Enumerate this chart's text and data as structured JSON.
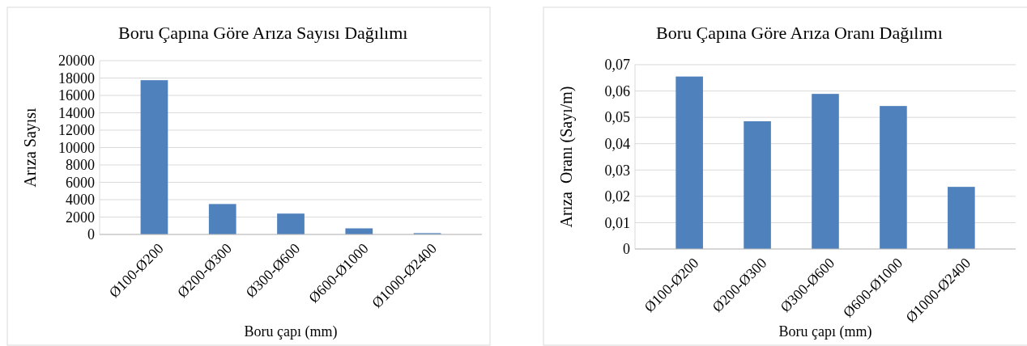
{
  "chart_data": [
    {
      "type": "bar",
      "title": "Boru Çapına Göre Arıza Sayısı Dağılımı",
      "xlabel": "Boru çapı (mm)",
      "ylabel": "Arıza Sayısı",
      "categories": [
        "Ø100-Ø200",
        "Ø200-Ø300",
        "Ø300-Ø600",
        "Ø600-Ø1000",
        "Ø1000-Ø2400"
      ],
      "values": [
        17750,
        3500,
        2400,
        700,
        150
      ],
      "color": "#4f81bd",
      "ylim": [
        0,
        20000
      ],
      "yticks": [
        0,
        2000,
        4000,
        6000,
        8000,
        10000,
        12000,
        14000,
        16000,
        18000,
        20000
      ],
      "grid": "y"
    },
    {
      "type": "bar",
      "title": "Boru Çapına Göre Arıza Oranı Dağılımı",
      "xlabel": "Boru çapı (mm)",
      "ylabel": "Arıza  Oranı (Sayı/m)",
      "categories": [
        "Ø100-Ø200",
        "Ø200-Ø300",
        "Ø300-Ø600",
        "Ø600-Ø1000",
        "Ø1000-Ø2400"
      ],
      "values": [
        0.0655,
        0.0485,
        0.0589,
        0.0543,
        0.0236
      ],
      "color": "#4f81bd",
      "ylim": [
        0,
        0.07
      ],
      "yticks": [
        {
          "value": 0,
          "label": "0"
        },
        {
          "value": 0.01,
          "label": "0,01"
        },
        {
          "value": 0.02,
          "label": "0,02"
        },
        {
          "value": 0.03,
          "label": "0,03"
        },
        {
          "value": 0.04,
          "label": "0,04"
        },
        {
          "value": 0.05,
          "label": "0,05"
        },
        {
          "value": 0.06,
          "label": "0,06"
        },
        {
          "value": 0.07,
          "label": "0,07"
        }
      ],
      "grid": "y"
    }
  ]
}
